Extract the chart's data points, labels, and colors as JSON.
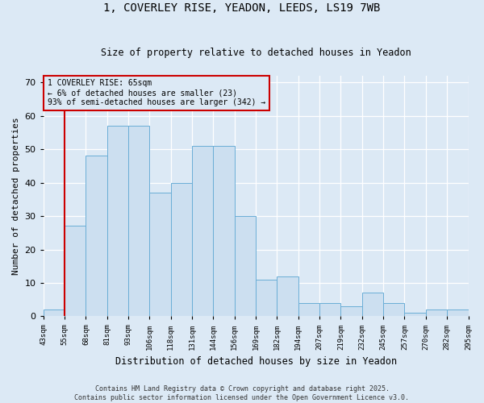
{
  "title_line1": "1, COVERLEY RISE, YEADON, LEEDS, LS19 7WB",
  "title_line2": "Size of property relative to detached houses in Yeadon",
  "xlabel": "Distribution of detached houses by size in Yeadon",
  "ylabel": "Number of detached properties",
  "categories": [
    "43sqm",
    "55sqm",
    "68sqm",
    "81sqm",
    "93sqm",
    "106sqm",
    "118sqm",
    "131sqm",
    "144sqm",
    "156sqm",
    "169sqm",
    "182sqm",
    "194sqm",
    "207sqm",
    "219sqm",
    "232sqm",
    "245sqm",
    "257sqm",
    "270sqm",
    "282sqm",
    "295sqm"
  ],
  "bar_heights": [
    2,
    27,
    48,
    57,
    57,
    37,
    40,
    51,
    51,
    30,
    11,
    12,
    4,
    4,
    3,
    7,
    4,
    1,
    2,
    2
  ],
  "bar_color": "#ccdff0",
  "bar_edge_color": "#6aaed6",
  "background_color": "#dce9f5",
  "grid_color": "#ffffff",
  "vline_color": "#cc0000",
  "annotation_text": "1 COVERLEY RISE: 65sqm\n← 6% of detached houses are smaller (23)\n93% of semi-detached houses are larger (342) →",
  "annotation_box_color": "#cc0000",
  "ylim": [
    0,
    72
  ],
  "yticks": [
    0,
    10,
    20,
    30,
    40,
    50,
    60,
    70
  ],
  "footer_line1": "Contains HM Land Registry data © Crown copyright and database right 2025.",
  "footer_line2": "Contains public sector information licensed under the Open Government Licence v3.0."
}
